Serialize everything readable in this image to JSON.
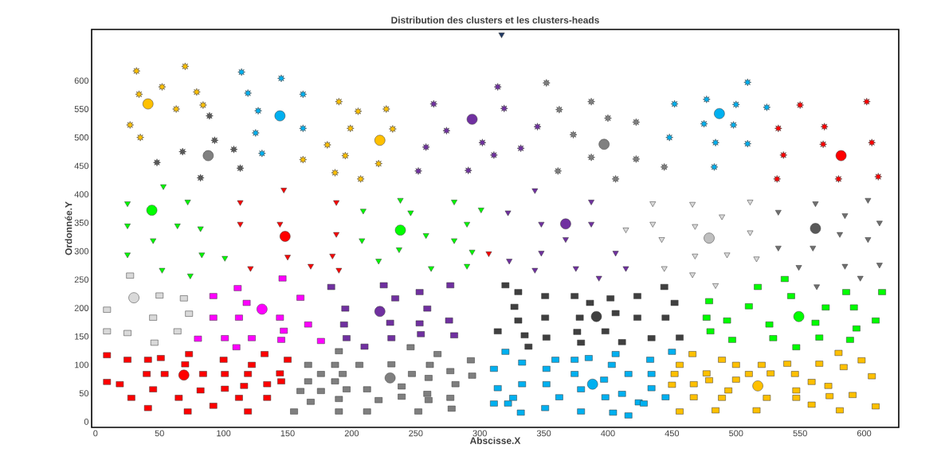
{
  "chart_data": {
    "type": "scatter",
    "title": "Distribution des clusters et les clusters-heads",
    "xlabel": "Abscisse.X",
    "ylabel": "Ordonnée.Y",
    "xlim": [
      -3,
      627
    ],
    "ylim": [
      -10,
      690
    ],
    "xticks": [
      0,
      50,
      100,
      150,
      200,
      250,
      300,
      350,
      400,
      450,
      500,
      550,
      600
    ],
    "yticks": [
      0,
      50,
      100,
      150,
      200,
      250,
      300,
      350,
      400,
      450,
      500,
      550,
      600
    ],
    "series": [
      {
        "color": "#FFC000",
        "marker": "star",
        "x": [
          32,
          70,
          52,
          79,
          34,
          63,
          84,
          27,
          35,
          190,
          205,
          199,
          181,
          195,
          162,
          187,
          207,
          227,
          232,
          221
        ],
        "values": [
          617,
          625,
          589,
          580,
          576,
          550,
          557,
          522,
          500,
          563,
          546,
          516,
          487,
          468,
          461,
          438,
          427,
          550,
          515,
          454
        ]
      },
      {
        "color": "#595959",
        "marker": "star",
        "x": [
          89,
          93,
          68,
          108,
          48,
          113,
          82
        ],
        "values": [
          538,
          495,
          475,
          479,
          456,
          446,
          429
        ]
      },
      {
        "color": "#808080",
        "marker": "star",
        "x": [
          352,
          387,
          362,
          400,
          422,
          373,
          387,
          361,
          406,
          422,
          444
        ],
        "values": [
          596,
          563,
          549,
          534,
          527,
          505,
          465,
          441,
          427,
          462,
          448
        ]
      },
      {
        "color": "#7030A0",
        "marker": "star",
        "x": [
          314,
          264,
          319,
          274,
          345,
          258,
          302,
          311,
          332,
          252,
          291
        ],
        "values": [
          589,
          559,
          551,
          512,
          519,
          483,
          491,
          469,
          481,
          441,
          442
        ]
      },
      {
        "color": "#00B0F0",
        "marker": "star",
        "x": [
          114,
          145,
          119,
          162,
          127,
          162,
          125,
          130,
          509,
          452,
          477,
          500,
          524,
          475,
          498,
          448,
          484,
          509,
          483
        ],
        "values": [
          615,
          604,
          578,
          576,
          547,
          516,
          508,
          472,
          597,
          559,
          567,
          558,
          553,
          524,
          522,
          500,
          491,
          489,
          448
        ]
      },
      {
        "color": "#FF0000",
        "marker": "star",
        "x": [
          550,
          602,
          533,
          569,
          568,
          606,
          537,
          532,
          580,
          611
        ],
        "values": [
          557,
          563,
          516,
          519,
          488,
          491,
          469,
          427,
          427,
          431
        ]
      },
      {
        "color": "#00FF00",
        "marker": "triangle",
        "x": [
          53,
          25,
          72,
          25,
          64,
          82,
          45,
          25,
          83,
          101,
          52,
          74,
          209,
          208,
          238,
          280,
          246,
          301,
          290,
          258,
          280,
          237,
          294,
          221,
          262,
          290
        ],
        "values": [
          414,
          384,
          387,
          345,
          345,
          340,
          319,
          294,
          294,
          288,
          267,
          257,
          371,
          319,
          390,
          387,
          368,
          373,
          348,
          328,
          319,
          303,
          299,
          283,
          270,
          274
        ]
      },
      {
        "color": "#FF0000",
        "marker": "triangle",
        "x": [
          147,
          113,
          188,
          113,
          144,
          188,
          307,
          121,
          150,
          168,
          185,
          190
        ],
        "values": [
          408,
          386,
          386,
          348,
          348,
          330,
          296,
          270,
          290,
          274,
          292,
          267
        ]
      },
      {
        "color": "#7030A0",
        "marker": "triangle",
        "x": [
          343,
          387,
          322,
          348,
          387,
          367,
          348,
          323,
          406,
          343,
          375,
          393,
          414
        ],
        "values": [
          407,
          387,
          368,
          348,
          348,
          321,
          297,
          283,
          297,
          267,
          270,
          253,
          270
        ]
      },
      {
        "color": "#D9D9D9",
        "marker": "triangle",
        "x": [
          414,
          435,
          466,
          511,
          489,
          435,
          468,
          511,
          442,
          468,
          493,
          516,
          444,
          466,
          484
        ],
        "values": [
          338,
          384,
          383,
          387,
          361,
          348,
          344,
          333,
          321,
          292,
          294,
          287,
          270,
          259,
          240
        ]
      },
      {
        "color": "#707070",
        "marker": "triangle",
        "x": [
          533,
          562,
          603,
          585,
          612,
          581,
          603,
          533,
          560,
          549,
          585,
          612,
          597,
          563
        ],
        "values": [
          369,
          384,
          390,
          363,
          350,
          330,
          321,
          306,
          306,
          272,
          274,
          276,
          253,
          238
        ]
      },
      {
        "color": "#D9D9D9",
        "marker": "square",
        "x": [
          27,
          50,
          69,
          9,
          45,
          73,
          9,
          25,
          64,
          46
        ],
        "values": [
          257,
          222,
          217,
          197,
          183,
          190,
          159,
          156,
          159,
          139
        ]
      },
      {
        "color": "#FF00FF",
        "marker": "square",
        "x": [
          146,
          111,
          92,
          160,
          118,
          92,
          112,
          144,
          166,
          147,
          80,
          101,
          122,
          145,
          176,
          110
        ],
        "values": [
          252,
          235,
          221,
          218,
          209,
          183,
          183,
          183,
          171,
          160,
          146,
          147,
          147,
          144,
          142,
          131
        ]
      },
      {
        "color": "#7030A0",
        "marker": "square",
        "x": [
          184,
          195,
          194,
          196,
          210,
          225,
          277,
          234,
          253,
          259,
          230,
          253,
          276,
          254,
          280,
          231
        ],
        "values": [
          237,
          199,
          171,
          147,
          132,
          240,
          240,
          217,
          228,
          199,
          174,
          173,
          178,
          154,
          152,
          147
        ]
      },
      {
        "color": "#404040",
        "marker": "square",
        "x": [
          320,
          330,
          351,
          374,
          402,
          386,
          423,
          327,
          330,
          351,
          378,
          406,
          423,
          314,
          335,
          352,
          376,
          398,
          379,
          411,
          338,
          444,
          452,
          445,
          434,
          456
        ],
        "values": [
          240,
          228,
          221,
          221,
          217,
          209,
          221,
          202,
          178,
          183,
          183,
          191,
          183,
          159,
          152,
          148,
          158,
          159,
          139,
          140,
          132,
          237,
          209,
          183,
          147,
          148
        ]
      },
      {
        "color": "#00FF00",
        "marker": "square",
        "x": [
          538,
          517,
          543,
          586,
          614,
          479,
          510,
          570,
          592,
          477,
          493,
          526,
          562,
          609,
          480,
          594,
          529,
          565,
          589,
          497,
          547
        ],
        "values": [
          251,
          237,
          221,
          228,
          228,
          212,
          203,
          201,
          201,
          183,
          178,
          171,
          174,
          178,
          159,
          164,
          147,
          148,
          144,
          144,
          131
        ]
      },
      {
        "color": "#FF0000",
        "marker": "square",
        "x": [
          9,
          25,
          41,
          51,
          73,
          70,
          100,
          132,
          150,
          122,
          40,
          54,
          84,
          101,
          119,
          144,
          9,
          19,
          145,
          45,
          82,
          101,
          116,
          134,
          28,
          65,
          112,
          134,
          41,
          92,
          72,
          119
        ],
        "values": [
          117,
          109,
          109,
          112,
          119,
          101,
          109,
          119,
          109,
          100,
          84,
          84,
          84,
          84,
          84,
          85,
          70,
          66,
          71,
          57,
          55,
          58,
          63,
          66,
          42,
          42,
          42,
          42,
          24,
          28,
          18,
          18
        ]
      },
      {
        "color": "#7F7F7F",
        "marker": "square",
        "x": [
          190,
          166,
          187,
          206,
          176,
          193,
          166,
          187,
          160,
          176,
          196,
          168,
          190,
          155,
          190,
          212,
          246,
          267,
          293,
          231,
          261,
          247,
          277,
          294,
          260,
          281,
          239,
          212,
          239,
          259,
          277,
          221,
          260,
          252,
          278
        ],
        "values": [
          124,
          100,
          100,
          100,
          84,
          84,
          71,
          71,
          54,
          54,
          57,
          35,
          40,
          18,
          18,
          18,
          131,
          119,
          108,
          101,
          100,
          84,
          89,
          81,
          77,
          66,
          62,
          57,
          44,
          49,
          42,
          38,
          38,
          18,
          23
        ]
      },
      {
        "color": "#00B0F0",
        "marker": "square",
        "x": [
          320,
          333,
          311,
          359,
          374,
          385,
          406,
          352,
          374,
          403,
          416,
          314,
          333,
          352,
          379,
          397,
          326,
          362,
          398,
          411,
          311,
          322,
          351,
          332,
          379,
          404,
          416,
          424,
          450,
          433,
          434,
          434,
          445,
          428
        ],
        "values": [
          123,
          104,
          93,
          109,
          109,
          112,
          119,
          93,
          84,
          100,
          84,
          59,
          66,
          66,
          57,
          74,
          42,
          43,
          43,
          49,
          32,
          32,
          24,
          16,
          18,
          16,
          11,
          34,
          123,
          109,
          84,
          59,
          43,
          32
        ]
      },
      {
        "color": "#FFC000",
        "marker": "square",
        "x": [
          466,
          489,
          456,
          500,
          520,
          540,
          565,
          580,
          598,
          584,
          452,
          477,
          527,
          546,
          606,
          450,
          467,
          479,
          500,
          510,
          559,
          572,
          547,
          494,
          467,
          489,
          524,
          547,
          573,
          591,
          559,
          456,
          484,
          516,
          581,
          609
        ],
        "values": [
          119,
          109,
          100,
          100,
          100,
          102,
          102,
          121,
          108,
          96,
          84,
          85,
          85,
          84,
          80,
          65,
          66,
          73,
          74,
          84,
          70,
          63,
          55,
          55,
          43,
          42,
          42,
          42,
          45,
          47,
          30,
          18,
          20,
          20,
          20,
          27
        ]
      },
      {
        "color": "#FFC000",
        "marker": "circle",
        "x": [
          41,
          222
        ],
        "values": [
          559,
          495
        ]
      },
      {
        "color": "#808080",
        "marker": "circle",
        "x": [
          88,
          397
        ],
        "values": [
          468,
          488
        ]
      },
      {
        "color": "#00B0F0",
        "marker": "circle",
        "x": [
          144,
          487,
          388
        ],
        "values": [
          538,
          542,
          66
        ]
      },
      {
        "color": "#7030A0",
        "marker": "circle",
        "x": [
          294,
          367,
          222
        ],
        "values": [
          532,
          348,
          194
        ]
      },
      {
        "color": "#FF0000",
        "marker": "circle",
        "x": [
          582,
          148,
          69
        ],
        "values": [
          468,
          326,
          82
        ]
      },
      {
        "color": "#00FF00",
        "marker": "circle",
        "x": [
          44,
          238,
          549
        ],
        "values": [
          372,
          337,
          185
        ]
      },
      {
        "color": "#BFBFBF",
        "marker": "circle",
        "x": [
          479
        ],
        "values": [
          323
        ]
      },
      {
        "color": "#595959",
        "marker": "circle",
        "x": [
          562
        ],
        "values": [
          340
        ]
      },
      {
        "color": "#D9D9D9",
        "marker": "circle",
        "x": [
          30
        ],
        "values": [
          218
        ]
      },
      {
        "color": "#FF00FF",
        "marker": "circle",
        "x": [
          130
        ],
        "values": [
          198
        ]
      },
      {
        "color": "#404040",
        "marker": "circle",
        "x": [
          391
        ],
        "values": [
          185
        ]
      },
      {
        "color": "#7F7F7F",
        "marker": "circle",
        "x": [
          230
        ],
        "values": [
          77
        ]
      },
      {
        "color": "#FFC000",
        "marker": "circle",
        "x": [
          517
        ],
        "values": [
          63
        ]
      },
      {
        "color": "#1F3864",
        "marker": "triangle",
        "x": [
          317
        ],
        "values": [
          681
        ]
      }
    ]
  }
}
